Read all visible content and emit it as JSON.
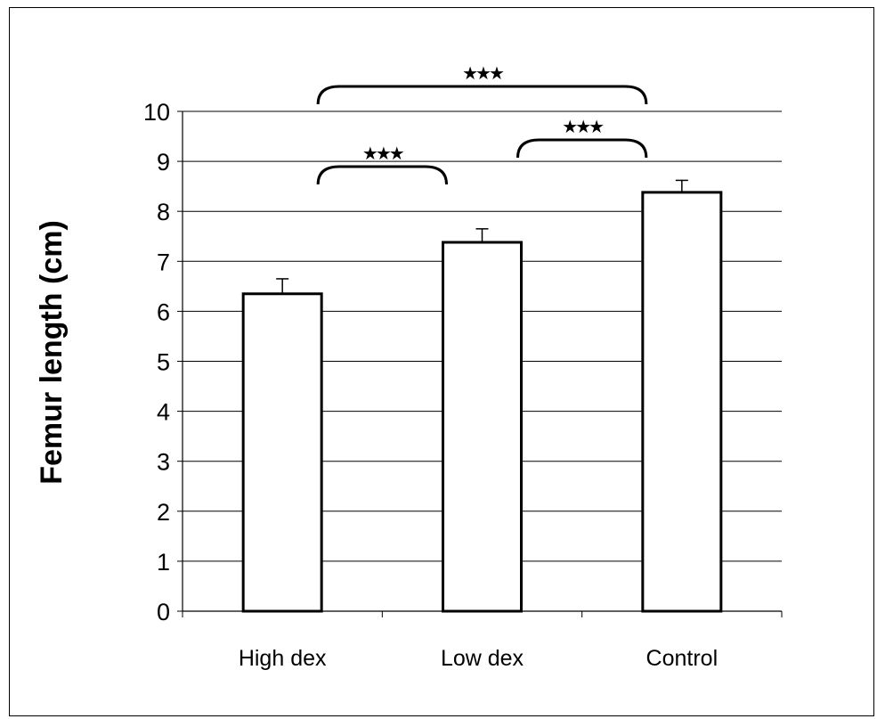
{
  "chart_data": {
    "type": "bar",
    "title": "",
    "xlabel": "",
    "ylabel": "Femur length (cm)",
    "categories": [
      "High dex",
      "Low dex",
      "Control"
    ],
    "values": [
      6.35,
      7.38,
      8.38
    ],
    "errors": [
      0.3,
      0.27,
      0.24
    ],
    "ylim": [
      0,
      10
    ],
    "yticks": [
      "0",
      "1",
      "2",
      "3",
      "4",
      "5",
      "6",
      "7",
      "8",
      "9",
      "10"
    ],
    "grid": true,
    "legend": "none",
    "significance": [
      {
        "from": "High dex",
        "to": "Low dex",
        "label": "★★★"
      },
      {
        "from": "Low dex",
        "to": "Control",
        "label": "★★★"
      },
      {
        "from": "High dex",
        "to": "Control",
        "label": "★★★"
      }
    ],
    "colors": {
      "bar_fill": "#ffffff",
      "bar_stroke": "#000000",
      "grid": "#000000"
    }
  }
}
